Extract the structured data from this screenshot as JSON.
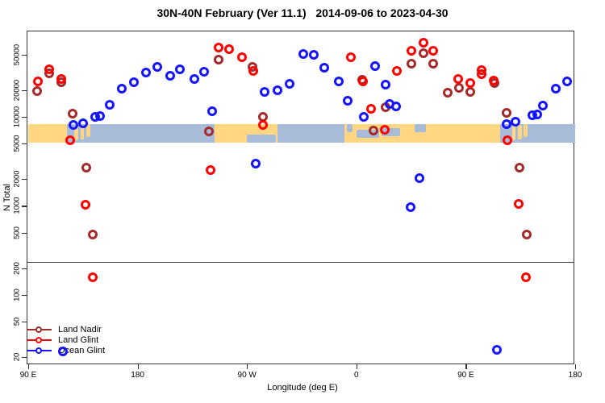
{
  "chart_data": {
    "type": "scatter",
    "title": "30N-40N February (Ver 11.1)   2014-09-06 to 2023-04-30",
    "xlabel": "Longitude (deg E)",
    "ylabel": "N Total",
    "y_scale": "log",
    "y_ticks": [
      50000,
      20000,
      10000,
      5000,
      2000,
      1000,
      500,
      200,
      100,
      50,
      20
    ],
    "x_ticks": [
      {
        "lon": 90,
        "label": "90 E"
      },
      {
        "lon": 180,
        "label": "180"
      },
      {
        "lon": 270,
        "label": "90 W"
      },
      {
        "lon": 360,
        "label": "0"
      },
      {
        "lon": 450,
        "label": "90 E"
      },
      {
        "lon": 540,
        "label": "180"
      }
    ],
    "x_range_deg": [
      90,
      540
    ],
    "y_range": [
      17,
      93000
    ],
    "grid": "off",
    "legend_position": "bottom-left",
    "reference_line_n": 235,
    "map_band": {
      "top_n": 8300,
      "bottom_n": 5100,
      "land_color": "#FFD782",
      "ocean_color": "#A8BCDA",
      "segments": [
        {
          "from": 90,
          "to": 122,
          "type": "land"
        },
        {
          "from": 122,
          "to": 243,
          "type": "ocean"
        },
        {
          "from": 243,
          "to": 295,
          "type": "land"
        },
        {
          "from": 295,
          "to": 350,
          "type": "ocean"
        },
        {
          "from": 350,
          "to": 478,
          "type": "land"
        },
        {
          "from": 478,
          "to": 540,
          "type": "ocean"
        }
      ],
      "patches": [
        {
          "from": 128,
          "to": 131,
          "type": "land",
          "top": 0.1,
          "bottom": 0.85
        },
        {
          "from": 133,
          "to": 136,
          "type": "land",
          "top": 0.05,
          "bottom": 0.8
        },
        {
          "from": 137.5,
          "to": 141,
          "type": "land",
          "top": 0.0,
          "bottom": 0.7
        },
        {
          "from": 270,
          "to": 294,
          "type": "ocean",
          "top": 0.55,
          "bottom": 1.0
        },
        {
          "from": 352,
          "to": 357,
          "type": "ocean",
          "top": 0.0,
          "bottom": 0.45
        },
        {
          "from": 360,
          "to": 379,
          "type": "ocean",
          "top": 0.3,
          "bottom": 0.75
        },
        {
          "from": 381,
          "to": 396,
          "type": "ocean",
          "top": 0.2,
          "bottom": 0.65
        },
        {
          "from": 408,
          "to": 417,
          "type": "ocean",
          "top": 0.0,
          "bottom": 0.45
        },
        {
          "from": 488,
          "to": 491,
          "type": "land",
          "top": 0.1,
          "bottom": 0.85
        },
        {
          "from": 493,
          "to": 496,
          "type": "land",
          "top": 0.05,
          "bottom": 0.8
        },
        {
          "from": 497.5,
          "to": 501,
          "type": "land",
          "top": 0.0,
          "bottom": 0.7
        }
      ]
    },
    "series": [
      {
        "name": "Land Nadir",
        "color": "#A52A2A",
        "points": [
          {
            "lon": 97.3,
            "n": 19400
          },
          {
            "lon": 107.3,
            "n": 30800
          },
          {
            "lon": 117.2,
            "n": 24500
          },
          {
            "lon": 126.5,
            "n": 10900
          },
          {
            "lon": 137.8,
            "n": 2690
          },
          {
            "lon": 143.1,
            "n": 476
          },
          {
            "lon": 238.7,
            "n": 6800
          },
          {
            "lon": 246.6,
            "n": 43800
          },
          {
            "lon": 274.5,
            "n": 36300
          },
          {
            "lon": 283.1,
            "n": 10000
          },
          {
            "lon": 364.8,
            "n": 26100
          },
          {
            "lon": 374.0,
            "n": 7000
          },
          {
            "lon": 384.0,
            "n": 12800
          },
          {
            "lon": 405.3,
            "n": 39400
          },
          {
            "lon": 415.2,
            "n": 51700
          },
          {
            "lon": 423.2,
            "n": 39400
          },
          {
            "lon": 435.1,
            "n": 18600
          },
          {
            "lon": 444.4,
            "n": 21100
          },
          {
            "lon": 453.7,
            "n": 19000
          },
          {
            "lon": 473.6,
            "n": 24000
          },
          {
            "lon": 483.6,
            "n": 11100
          },
          {
            "lon": 494.2,
            "n": 2690
          },
          {
            "lon": 500.2,
            "n": 476
          }
        ]
      },
      {
        "name": "Land Glint",
        "color": "#FF0000",
        "points": [
          {
            "lon": 98.0,
            "n": 25000
          },
          {
            "lon": 107.3,
            "n": 34000
          },
          {
            "lon": 117.2,
            "n": 26600
          },
          {
            "lon": 124.5,
            "n": 5500
          },
          {
            "lon": 137.1,
            "n": 1030
          },
          {
            "lon": 143.1,
            "n": 158
          },
          {
            "lon": 240.0,
            "n": 2520
          },
          {
            "lon": 246.6,
            "n": 60000
          },
          {
            "lon": 255.3,
            "n": 57400
          },
          {
            "lon": 265.9,
            "n": 46600
          },
          {
            "lon": 275.2,
            "n": 32700
          },
          {
            "lon": 283.1,
            "n": 8100
          },
          {
            "lon": 355.5,
            "n": 46600
          },
          {
            "lon": 365.4,
            "n": 25000
          },
          {
            "lon": 372.1,
            "n": 12300
          },
          {
            "lon": 383.3,
            "n": 7100
          },
          {
            "lon": 393.3,
            "n": 32700
          },
          {
            "lon": 405.3,
            "n": 55200
          },
          {
            "lon": 415.2,
            "n": 67800
          },
          {
            "lon": 423.2,
            "n": 55200
          },
          {
            "lon": 443.7,
            "n": 26600
          },
          {
            "lon": 453.7,
            "n": 24000
          },
          {
            "lon": 463.0,
            "n": 33300
          },
          {
            "lon": 463.0,
            "n": 30200
          },
          {
            "lon": 472.9,
            "n": 25500
          },
          {
            "lon": 484.2,
            "n": 5500
          },
          {
            "lon": 493.5,
            "n": 1050
          },
          {
            "lon": 499.5,
            "n": 158
          }
        ]
      },
      {
        "name": "Ocean Glint",
        "color": "#1414FF",
        "points": [
          {
            "lon": 118.5,
            "n": 23
          },
          {
            "lon": 127.2,
            "n": 8100
          },
          {
            "lon": 135.1,
            "n": 8440
          },
          {
            "lon": 145.1,
            "n": 9980
          },
          {
            "lon": 149.1,
            "n": 10200
          },
          {
            "lon": 157.0,
            "n": 13600
          },
          {
            "lon": 167.0,
            "n": 20700
          },
          {
            "lon": 176.9,
            "n": 24500
          },
          {
            "lon": 186.9,
            "n": 31300
          },
          {
            "lon": 196.2,
            "n": 36300
          },
          {
            "lon": 206.8,
            "n": 28700
          },
          {
            "lon": 214.8,
            "n": 34100
          },
          {
            "lon": 226.7,
            "n": 26600
          },
          {
            "lon": 234.7,
            "n": 32000
          },
          {
            "lon": 241.3,
            "n": 11600
          },
          {
            "lon": 277.2,
            "n": 3000
          },
          {
            "lon": 284.5,
            "n": 19000
          },
          {
            "lon": 295.1,
            "n": 19800
          },
          {
            "lon": 305.0,
            "n": 23400
          },
          {
            "lon": 316.3,
            "n": 50700
          },
          {
            "lon": 324.9,
            "n": 49700
          },
          {
            "lon": 333.6,
            "n": 35600
          },
          {
            "lon": 345.5,
            "n": 25000
          },
          {
            "lon": 352.8,
            "n": 15100
          },
          {
            "lon": 366.1,
            "n": 10000
          },
          {
            "lon": 375.4,
            "n": 37000
          },
          {
            "lon": 384.0,
            "n": 23000
          },
          {
            "lon": 387.3,
            "n": 13900
          },
          {
            "lon": 392.6,
            "n": 13100
          },
          {
            "lon": 404.6,
            "n": 970
          },
          {
            "lon": 411.9,
            "n": 2050
          },
          {
            "lon": 475.6,
            "n": 24
          },
          {
            "lon": 483.6,
            "n": 8300
          },
          {
            "lon": 490.9,
            "n": 8800
          },
          {
            "lon": 504.8,
            "n": 10400
          },
          {
            "lon": 508.8,
            "n": 10600
          },
          {
            "lon": 513.5,
            "n": 13400
          },
          {
            "lon": 524.1,
            "n": 20700
          },
          {
            "lon": 533.4,
            "n": 25000
          }
        ]
      }
    ]
  }
}
